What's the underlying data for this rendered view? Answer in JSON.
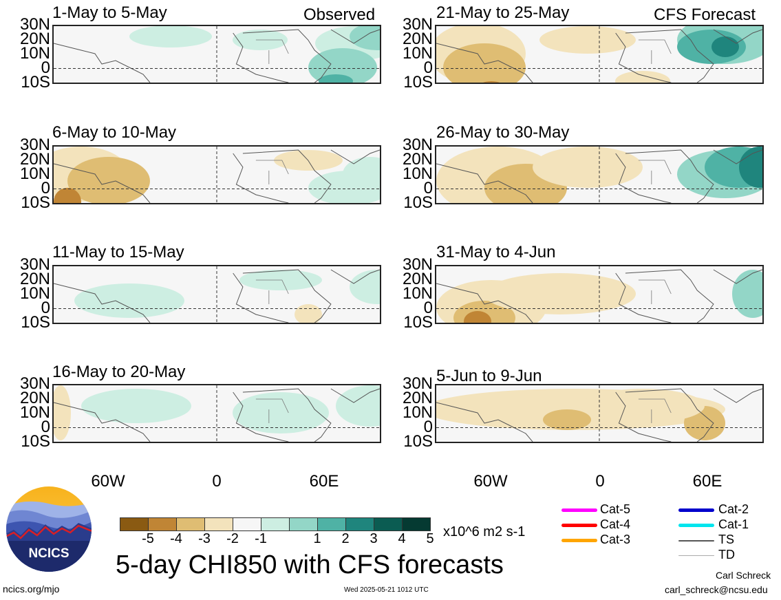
{
  "header": {
    "left_tag": "Observed",
    "right_tag": "CFS Forecast"
  },
  "panels": {
    "left": [
      {
        "title": "1-May to 5-May"
      },
      {
        "title": "6-May to 10-May"
      },
      {
        "title": "11-May to 15-May"
      },
      {
        "title": "16-May to 20-May"
      }
    ],
    "right": [
      {
        "title": "21-May to 25-May"
      },
      {
        "title": "26-May to 30-May"
      },
      {
        "title": "31-May to 4-Jun"
      },
      {
        "title": "5-Jun to 9-Jun"
      }
    ]
  },
  "axes": {
    "y_labels": [
      "30N",
      "20N",
      "10N",
      "0",
      "10S"
    ],
    "x_labels": [
      "60W",
      "0",
      "60E"
    ]
  },
  "colorbar": {
    "colors": [
      "#4a2c08",
      "#8a5a12",
      "#c08535",
      "#dfbd73",
      "#f3e3bc",
      "#f6f6f6",
      "#cdeee2",
      "#93d6c7",
      "#4fb2a5",
      "#1f857d",
      "#0b5c52",
      "#053a32"
    ],
    "labels": [
      "-5",
      "-4",
      "-3",
      "-2",
      "-1",
      "1",
      "2",
      "3",
      "4",
      "5"
    ],
    "units": "x10^6 m2 s-1"
  },
  "main_title": "5-day CHI850 with CFS forecasts",
  "legend": [
    {
      "label": "Cat-5",
      "color": "#ff00ff"
    },
    {
      "label": "Cat-4",
      "color": "#ff0000"
    },
    {
      "label": "Cat-3",
      "color": "#ffa500"
    },
    {
      "label": "Cat-2",
      "color": "#0000cc"
    },
    {
      "label": "Cat-1",
      "color": "#00e5ee"
    },
    {
      "label": "TS",
      "color": "#555555"
    },
    {
      "label": "TD",
      "color": "#aaaaaa"
    }
  ],
  "logo": {
    "text": "NCICS"
  },
  "footer": {
    "left": "ncics.org/mjo",
    "center": "Wed 2025-05-21 1012 UTC",
    "right_name": "Carl Schreck",
    "right_email": "carl_schreck@ncsu.edu"
  }
}
